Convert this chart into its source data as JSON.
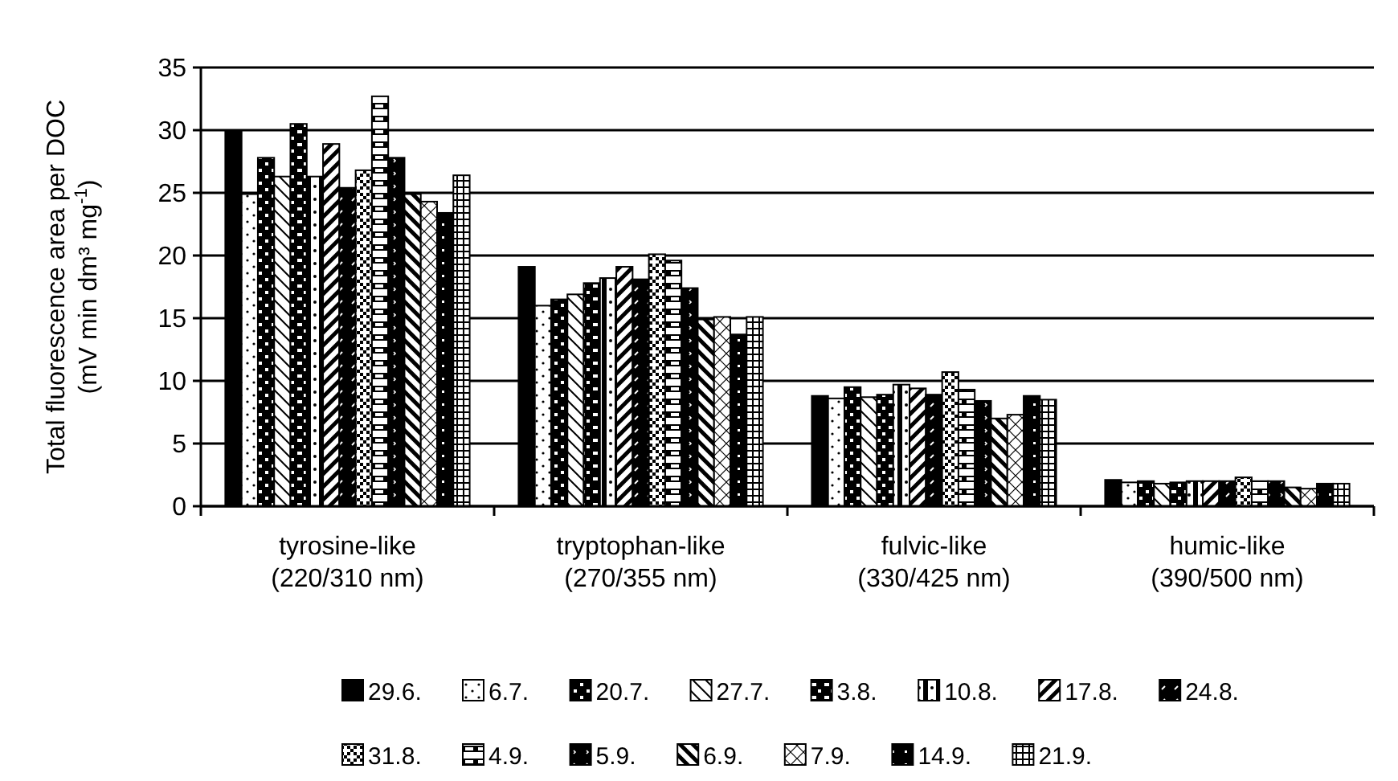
{
  "chart_data": {
    "type": "bar",
    "ylabel": "Total fluorescence area per DOC\n(mV min dm³ mg$^{-1}$)",
    "categories": [
      "tyrosine-like\n(220/310 nm)",
      "tryptophan-like\n(270/355 nm)",
      "fulvic-like\n(330/425 nm)",
      "humic-like\n(390/500 nm)"
    ],
    "ylim": [
      0,
      35
    ],
    "yticks": [
      0,
      5,
      10,
      15,
      20,
      25,
      30,
      35
    ],
    "grid": "y",
    "legend": "bottom",
    "series": [
      {
        "name": "29.6.",
        "color": "#000000",
        "values": [
          30.0,
          19.1,
          8.8,
          2.1
        ]
      },
      {
        "name": "6.7.",
        "color": "#000000",
        "values": [
          24.9,
          16.0,
          8.6,
          1.9
        ]
      },
      {
        "name": "20.7.",
        "color": "#000000",
        "values": [
          27.8,
          16.5,
          9.5,
          2.0
        ]
      },
      {
        "name": "27.7.",
        "color": "#000000",
        "values": [
          26.3,
          16.9,
          8.7,
          1.8
        ]
      },
      {
        "name": "3.8.",
        "color": "#000000",
        "values": [
          30.5,
          17.8,
          8.9,
          1.9
        ]
      },
      {
        "name": "10.8.",
        "color": "#000000",
        "values": [
          26.3,
          18.2,
          9.7,
          2.0
        ]
      },
      {
        "name": "17.8.",
        "color": "#000000",
        "values": [
          28.9,
          19.1,
          9.4,
          2.0
        ]
      },
      {
        "name": "24.8.",
        "color": "#000000",
        "values": [
          25.4,
          18.1,
          8.9,
          2.0
        ]
      },
      {
        "name": "31.8.",
        "color": "#000000",
        "values": [
          26.8,
          20.1,
          10.7,
          2.3
        ]
      },
      {
        "name": "4.9.",
        "color": "#000000",
        "values": [
          32.7,
          19.6,
          9.3,
          2.0
        ]
      },
      {
        "name": "5.9.",
        "color": "#000000",
        "values": [
          27.8,
          17.4,
          8.4,
          2.0
        ]
      },
      {
        "name": "6.9.",
        "color": "#000000",
        "values": [
          24.9,
          14.9,
          7.0,
          1.5
        ]
      },
      {
        "name": "7.9.",
        "color": "#000000",
        "values": [
          24.3,
          15.1,
          7.3,
          1.4
        ]
      },
      {
        "name": "14.9.",
        "color": "#000000",
        "values": [
          23.4,
          13.7,
          8.8,
          1.8
        ]
      },
      {
        "name": "21.9.",
        "color": "#000000",
        "values": [
          26.4,
          15.1,
          8.5,
          1.8
        ]
      }
    ]
  }
}
